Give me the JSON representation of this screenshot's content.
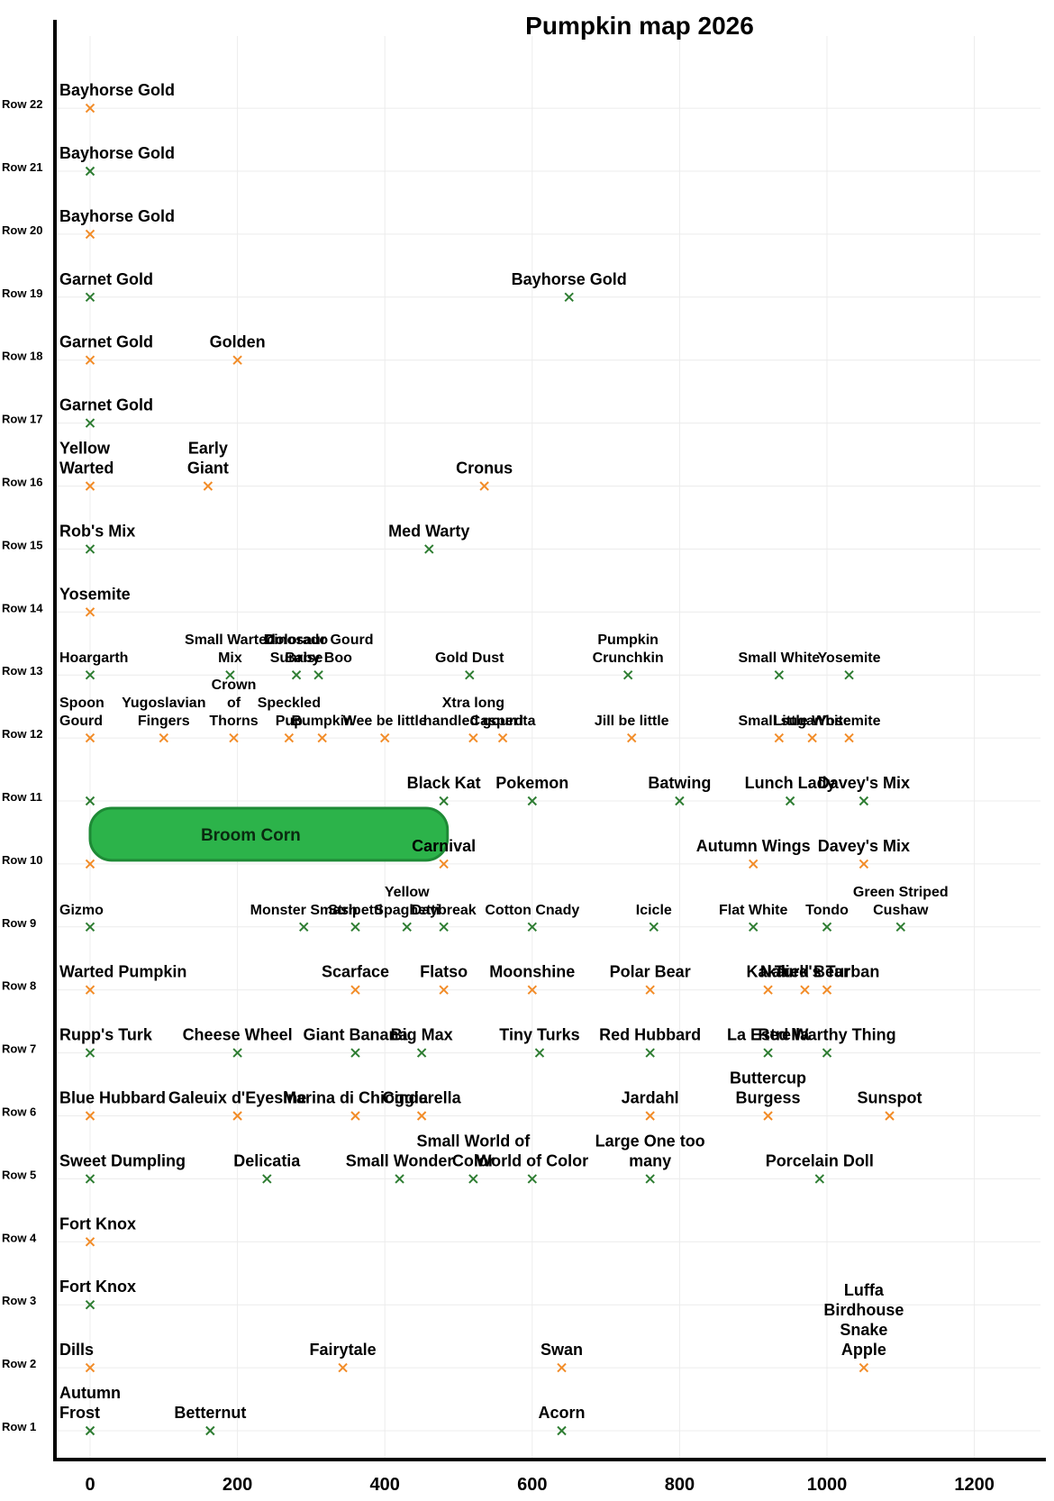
{
  "chart_data": {
    "type": "scatter",
    "title": "Pumpkin map 2026",
    "xlim": [
      -50,
      1300
    ],
    "xticks": [
      0,
      200,
      400,
      600,
      800,
      1000,
      1200
    ],
    "rows": [
      "Row 1",
      "Row 2",
      "Row 3",
      "Row 4",
      "Row 5",
      "Row 6",
      "Row 7",
      "Row 8",
      "Row 9",
      "Row 10",
      "Row 11",
      "Row 12",
      "Row 13",
      "Row 14",
      "Row 15",
      "Row 16",
      "Row 17",
      "Row 18",
      "Row 19",
      "Row 20",
      "Row 21",
      "Row 22"
    ],
    "colors": {
      "green": "#2e7d32",
      "orange": "#f28c28",
      "region": "#2cb34a"
    },
    "region": {
      "label": "Broom Corn",
      "x_start": 0,
      "x_end": 485,
      "row_start": 10,
      "row_end": 11
    },
    "points": [
      {
        "row": 1,
        "x": 0,
        "c": "green",
        "label": [
          "Autumn",
          "Frost"
        ]
      },
      {
        "row": 1,
        "x": 163,
        "c": "green",
        "label": [
          "Betternut"
        ]
      },
      {
        "row": 1,
        "x": 640,
        "c": "green",
        "label": [
          "Acorn"
        ]
      },
      {
        "row": 2,
        "x": 0,
        "c": "orange",
        "label": [
          "Dills"
        ]
      },
      {
        "row": 2,
        "x": 343,
        "c": "orange",
        "label": [
          "Fairytale"
        ]
      },
      {
        "row": 2,
        "x": 640,
        "c": "orange",
        "label": [
          "Swan"
        ]
      },
      {
        "row": 2,
        "x": 1050,
        "c": "orange",
        "label": [
          "Luffa",
          "Birdhouse",
          "Snake",
          "Apple"
        ]
      },
      {
        "row": 3,
        "x": 0,
        "c": "green",
        "label": [
          "Fort Knox"
        ]
      },
      {
        "row": 4,
        "x": 0,
        "c": "orange",
        "label": [
          "Fort Knox"
        ]
      },
      {
        "row": 5,
        "x": 0,
        "c": "green",
        "label": [
          "Sweet Dumpling"
        ]
      },
      {
        "row": 5,
        "x": 240,
        "c": "green",
        "label": [
          "Delicatia"
        ]
      },
      {
        "row": 5,
        "x": 420,
        "c": "green",
        "label": [
          "Small Wonder"
        ]
      },
      {
        "row": 5,
        "x": 520,
        "c": "green",
        "label": [
          "Small World of",
          "Color"
        ]
      },
      {
        "row": 5,
        "x": 600,
        "c": "green",
        "label": [
          "World of Color"
        ]
      },
      {
        "row": 5,
        "x": 760,
        "c": "green",
        "label": [
          "Large One too",
          "many"
        ]
      },
      {
        "row": 5,
        "x": 990,
        "c": "green",
        "label": [
          "Porcelain Doll"
        ]
      },
      {
        "row": 6,
        "x": 0,
        "c": "orange",
        "label": [
          "Blue Hubbard"
        ]
      },
      {
        "row": 6,
        "x": 200,
        "c": "orange",
        "label": [
          "Galeuix d'Eyesine"
        ]
      },
      {
        "row": 6,
        "x": 360,
        "c": "orange",
        "label": [
          "Marina di Chioggia"
        ]
      },
      {
        "row": 6,
        "x": 450,
        "c": "orange",
        "label": [
          "Cinderella"
        ]
      },
      {
        "row": 6,
        "x": 760,
        "c": "orange",
        "label": [
          "Jardahl"
        ]
      },
      {
        "row": 6,
        "x": 920,
        "c": "orange",
        "label": [
          "Buttercup",
          "Burgess"
        ]
      },
      {
        "row": 6,
        "x": 1085,
        "c": "orange",
        "label": [
          "Sunspot"
        ]
      },
      {
        "row": 7,
        "x": 0,
        "c": "green",
        "label": [
          "Rupp's Turk"
        ]
      },
      {
        "row": 7,
        "x": 200,
        "c": "green",
        "label": [
          "Cheese Wheel"
        ]
      },
      {
        "row": 7,
        "x": 360,
        "c": "green",
        "label": [
          "Giant Banana"
        ]
      },
      {
        "row": 7,
        "x": 450,
        "c": "green",
        "label": [
          "Big Max"
        ]
      },
      {
        "row": 7,
        "x": 610,
        "c": "green",
        "label": [
          "Tiny Turks"
        ]
      },
      {
        "row": 7,
        "x": 760,
        "c": "green",
        "label": [
          "Red Hubbard"
        ]
      },
      {
        "row": 7,
        "x": 920,
        "c": "green",
        "label": [
          "La Estrella"
        ]
      },
      {
        "row": 7,
        "x": 1000,
        "c": "green",
        "label": [
          "Red Warthy Thing"
        ]
      },
      {
        "row": 8,
        "x": 0,
        "c": "orange",
        "label": [
          "Warted Pumpkin"
        ]
      },
      {
        "row": 8,
        "x": 360,
        "c": "orange",
        "label": [
          "Scarface"
        ]
      },
      {
        "row": 8,
        "x": 480,
        "c": "orange",
        "label": [
          "Flatso"
        ]
      },
      {
        "row": 8,
        "x": 600,
        "c": "orange",
        "label": [
          "Moonshine"
        ]
      },
      {
        "row": 8,
        "x": 760,
        "c": "orange",
        "label": [
          "Polar Bear"
        ]
      },
      {
        "row": 8,
        "x": 920,
        "c": "orange",
        "label": [
          "Kakai"
        ]
      },
      {
        "row": 8,
        "x": 970,
        "c": "orange",
        "label": [
          "Naked Bear"
        ]
      },
      {
        "row": 8,
        "x": 1000,
        "c": "orange",
        "label": [
          "Turk's Turban"
        ]
      },
      {
        "row": 9,
        "x": 0,
        "c": "green",
        "label": [
          "Gizmo"
        ]
      },
      {
        "row": 9,
        "x": 290,
        "c": "green",
        "label": [
          "Monster Smash"
        ]
      },
      {
        "row": 9,
        "x": 360,
        "c": "green",
        "label": [
          "Stripetti"
        ]
      },
      {
        "row": 9,
        "x": 430,
        "c": "green",
        "label": [
          "Yellow",
          "Spaghetti"
        ]
      },
      {
        "row": 9,
        "x": 480,
        "c": "green",
        "label": [
          "Daybreak"
        ]
      },
      {
        "row": 9,
        "x": 600,
        "c": "green",
        "label": [
          "Cotton Cnady"
        ]
      },
      {
        "row": 9,
        "x": 765,
        "c": "green",
        "label": [
          "Icicle"
        ]
      },
      {
        "row": 9,
        "x": 900,
        "c": "green",
        "label": [
          "Flat White"
        ]
      },
      {
        "row": 9,
        "x": 1000,
        "c": "green",
        "label": [
          "Tondo"
        ]
      },
      {
        "row": 9,
        "x": 1100,
        "c": "green",
        "label": [
          "Green Striped",
          "Cushaw"
        ]
      },
      {
        "row": 10,
        "x": 0,
        "c": "orange",
        "label": []
      },
      {
        "row": 10,
        "x": 480,
        "c": "orange",
        "label": [
          "Carnival"
        ]
      },
      {
        "row": 10,
        "x": 900,
        "c": "orange",
        "label": [
          "Autumn Wings"
        ]
      },
      {
        "row": 10,
        "x": 1050,
        "c": "orange",
        "label": [
          "Davey's Mix"
        ]
      },
      {
        "row": 11,
        "x": 0,
        "c": "green",
        "label": []
      },
      {
        "row": 11,
        "x": 480,
        "c": "green",
        "label": [
          "Black Kat"
        ]
      },
      {
        "row": 11,
        "x": 600,
        "c": "green",
        "label": [
          "Pokemon"
        ]
      },
      {
        "row": 11,
        "x": 800,
        "c": "green",
        "label": [
          "Batwing"
        ]
      },
      {
        "row": 11,
        "x": 950,
        "c": "green",
        "label": [
          "Lunch Lady"
        ]
      },
      {
        "row": 11,
        "x": 1050,
        "c": "green",
        "label": [
          "Davey's Mix"
        ]
      },
      {
        "row": 12,
        "x": 0,
        "c": "orange",
        "label": [
          "Spoon",
          "Gourd"
        ]
      },
      {
        "row": 12,
        "x": 100,
        "c": "orange",
        "label": [
          "Yugoslavian",
          "Fingers"
        ]
      },
      {
        "row": 12,
        "x": 195,
        "c": "orange",
        "label": [
          "Crown",
          "of",
          "Thorns"
        ]
      },
      {
        "row": 12,
        "x": 270,
        "c": "orange",
        "label": [
          "Speckled",
          "Pup"
        ]
      },
      {
        "row": 12,
        "x": 315,
        "c": "orange",
        "label": [
          "Bumpkin"
        ]
      },
      {
        "row": 12,
        "x": 400,
        "c": "orange",
        "label": [
          "Wee be little"
        ]
      },
      {
        "row": 12,
        "x": 520,
        "c": "orange",
        "label": [
          "Xtra long",
          "handled gourd"
        ]
      },
      {
        "row": 12,
        "x": 560,
        "c": "orange",
        "label": [
          "Casperita"
        ]
      },
      {
        "row": 12,
        "x": 735,
        "c": "orange",
        "label": [
          "Jill be little"
        ]
      },
      {
        "row": 12,
        "x": 935,
        "c": "orange",
        "label": [
          "Small sugar"
        ]
      },
      {
        "row": 12,
        "x": 980,
        "c": "orange",
        "label": [
          "Little White"
        ]
      },
      {
        "row": 12,
        "x": 1030,
        "c": "orange",
        "label": [
          "Yosemite"
        ]
      },
      {
        "row": 13,
        "x": 0,
        "c": "green",
        "label": [
          "Hoargarth"
        ]
      },
      {
        "row": 13,
        "x": 190,
        "c": "green",
        "label": [
          "Small Warted",
          "Mix"
        ]
      },
      {
        "row": 13,
        "x": 280,
        "c": "green",
        "label": [
          "Colorado",
          "Sunrise"
        ]
      },
      {
        "row": 13,
        "x": 310,
        "c": "green",
        "label": [
          "Dinosaur Gourd",
          "Baby Boo"
        ]
      },
      {
        "row": 13,
        "x": 515,
        "c": "green",
        "label": [
          "Gold Dust"
        ]
      },
      {
        "row": 13,
        "x": 730,
        "c": "green",
        "label": [
          "Pumpkin",
          "Crunchkin"
        ]
      },
      {
        "row": 13,
        "x": 935,
        "c": "green",
        "label": [
          "Small White"
        ]
      },
      {
        "row": 13,
        "x": 1030,
        "c": "green",
        "label": [
          "Yosemite"
        ]
      },
      {
        "row": 14,
        "x": 0,
        "c": "orange",
        "label": [
          "Yosemite"
        ]
      },
      {
        "row": 15,
        "x": 0,
        "c": "green",
        "label": [
          "Rob's Mix"
        ]
      },
      {
        "row": 15,
        "x": 460,
        "c": "green",
        "label": [
          "Med Warty"
        ]
      },
      {
        "row": 16,
        "x": 0,
        "c": "orange",
        "label": [
          "Yellow",
          "Warted"
        ]
      },
      {
        "row": 16,
        "x": 160,
        "c": "orange",
        "label": [
          "Early",
          "Giant"
        ]
      },
      {
        "row": 16,
        "x": 535,
        "c": "orange",
        "label": [
          "Cronus"
        ]
      },
      {
        "row": 17,
        "x": 0,
        "c": "green",
        "label": [
          "Garnet Gold"
        ]
      },
      {
        "row": 18,
        "x": 0,
        "c": "orange",
        "label": [
          "Garnet Gold"
        ]
      },
      {
        "row": 18,
        "x": 200,
        "c": "orange",
        "label": [
          "Golden"
        ]
      },
      {
        "row": 19,
        "x": 0,
        "c": "green",
        "label": [
          "Garnet Gold"
        ]
      },
      {
        "row": 19,
        "x": 650,
        "c": "green",
        "label": [
          "Bayhorse Gold"
        ]
      },
      {
        "row": 20,
        "x": 0,
        "c": "orange",
        "label": [
          "Bayhorse Gold"
        ]
      },
      {
        "row": 21,
        "x": 0,
        "c": "green",
        "label": [
          "Bayhorse Gold"
        ]
      },
      {
        "row": 22,
        "x": 0,
        "c": "orange",
        "label": [
          "Bayhorse Gold"
        ]
      }
    ]
  }
}
